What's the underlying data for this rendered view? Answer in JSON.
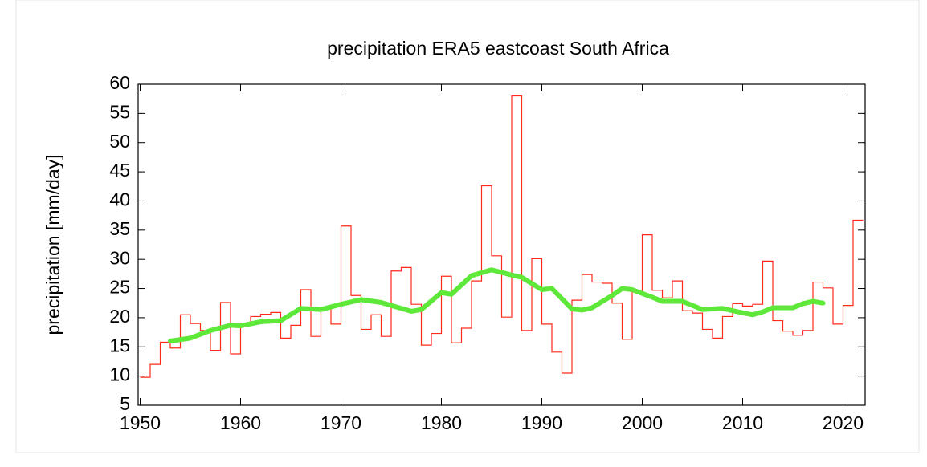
{
  "chart_data": {
    "type": "line",
    "title": "precipitation ERA5 eastcoast South Africa",
    "ylabel": "precipitation [mm/day]",
    "xlim": [
      1949.8,
      2022.2
    ],
    "ylim": [
      5,
      60
    ],
    "xticks": [
      1950,
      1960,
      1970,
      1980,
      1990,
      2000,
      2010,
      2020
    ],
    "yticks": [
      5,
      10,
      15,
      20,
      25,
      30,
      35,
      40,
      45,
      50,
      55,
      60
    ],
    "series": [
      {
        "color": "#ff2a1a",
        "style": "steps",
        "x": [
          1950,
          1951,
          1952,
          1953,
          1954,
          1955,
          1956,
          1957,
          1958,
          1959,
          1960,
          1961,
          1962,
          1963,
          1964,
          1965,
          1966,
          1967,
          1968,
          1969,
          1970,
          1971,
          1972,
          1973,
          1974,
          1975,
          1976,
          1977,
          1978,
          1979,
          1980,
          1981,
          1982,
          1983,
          1984,
          1985,
          1986,
          1987,
          1988,
          1989,
          1990,
          1991,
          1992,
          1993,
          1994,
          1995,
          1996,
          1997,
          1998,
          1999,
          2000,
          2001,
          2002,
          2003,
          2004,
          2005,
          2006,
          2007,
          2008,
          2009,
          2010,
          2011,
          2012,
          2013,
          2014,
          2015,
          2016,
          2017,
          2018,
          2019,
          2020,
          2021
        ],
        "values": [
          9.8,
          12,
          15.8,
          14.8,
          20.5,
          19,
          17.8,
          14.4,
          22.6,
          13.8,
          19,
          20.2,
          20.6,
          20.9,
          16.5,
          18.7,
          24.8,
          16.8,
          21.5,
          18.9,
          35.7,
          23.8,
          18,
          20.5,
          16.8,
          28,
          28.6,
          22.3,
          15.3,
          17.3,
          27.1,
          15.7,
          18.2,
          26.3,
          42.6,
          30.6,
          20.1,
          58,
          17.8,
          30.1,
          18.9,
          14.1,
          10.5,
          23,
          27.4,
          26.1,
          25.9,
          22.5,
          16.3,
          24.5,
          34.2,
          24.7,
          23.4,
          26.3,
          21.2,
          20.8,
          18,
          16.5,
          20.2,
          22.4,
          22,
          22.3,
          29.7,
          19.5,
          17.7,
          17,
          17.8,
          26.1,
          25.1,
          18.9,
          22.1,
          36.7
        ]
      },
      {
        "color": "#5ee83a",
        "style": "smooth",
        "x": [
          1953,
          1955,
          1957,
          1959,
          1960,
          1962,
          1964,
          1966,
          1968,
          1970,
          1972,
          1974,
          1976,
          1977,
          1978,
          1980,
          1981,
          1983,
          1985,
          1987,
          1988,
          1990,
          1991,
          1993,
          1994,
          1995,
          1997,
          1998,
          1999,
          2001,
          2002,
          2004,
          2006,
          2008,
          2009,
          2011,
          2012,
          2013,
          2015,
          2016,
          2017,
          2018
        ],
        "values": [
          16,
          16.5,
          17.8,
          18.7,
          18.6,
          19.3,
          19.5,
          21.6,
          21.4,
          22.3,
          23.1,
          22.6,
          21.6,
          21.1,
          21.4,
          24.3,
          24,
          27.2,
          28.2,
          27.3,
          26.9,
          24.8,
          25,
          21.5,
          21.3,
          21.7,
          23.8,
          25,
          24.8,
          23.5,
          22.8,
          22.8,
          21.4,
          21.6,
          21.2,
          20.5,
          21,
          21.7,
          21.7,
          22.4,
          22.8,
          22.5
        ]
      }
    ]
  }
}
